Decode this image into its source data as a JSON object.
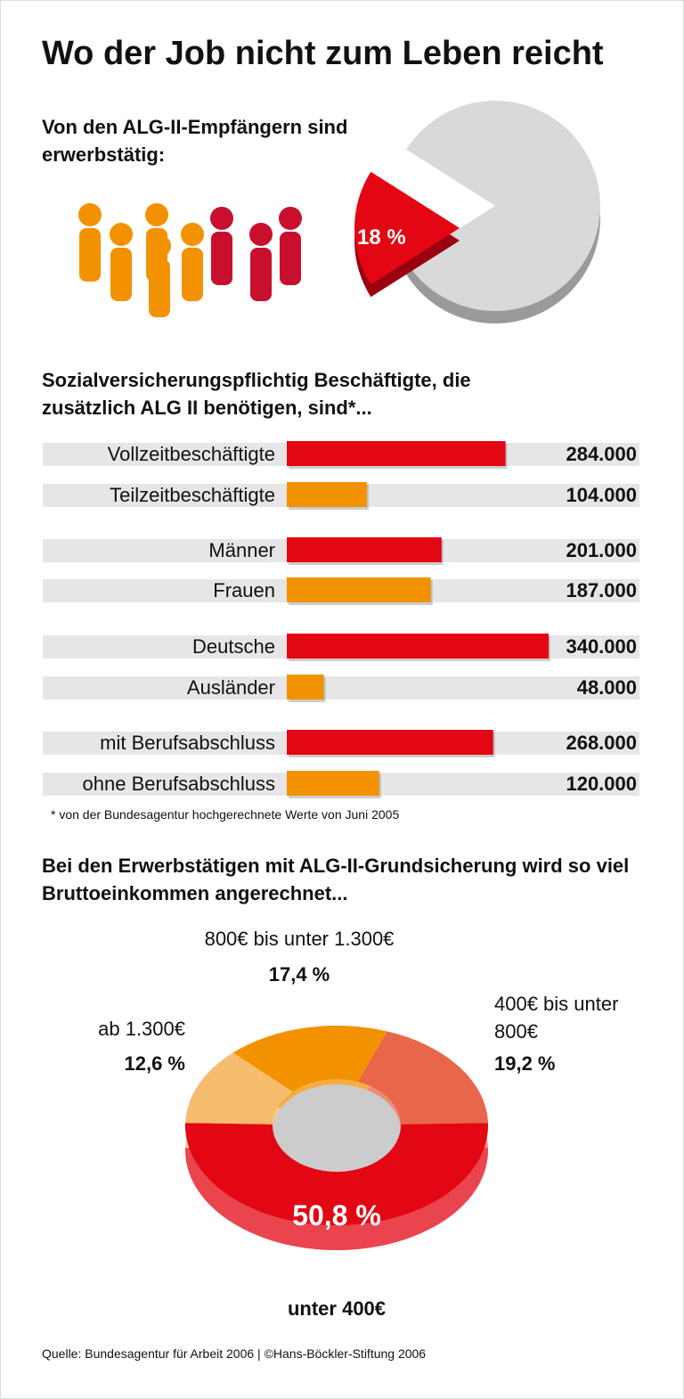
{
  "title": "Wo der Job nicht zum Leben reicht",
  "source": "Quelle: Bundesagentur für Arbeit 2006 | ©Hans-Böckler-Stiftung 2006",
  "chart_data": [
    {
      "type": "pie",
      "title": "Von den ALG-II-Empfängern sind erwerbstätig:",
      "values": [
        18
      ],
      "value_labels": [
        "18 %"
      ],
      "color": "#e30613",
      "rest_color": "#d9d9d9"
    },
    {
      "type": "bar",
      "title": "Sozialversicherungspflichtig Beschäftigte, die zusätzlich ALG II benötigen, sind*...",
      "categories": [
        "Vollzeitbeschäftigte",
        "Teilzeitbeschäftigte",
        "Männer",
        "Frauen",
        "Deutsche",
        "Ausländer",
        "mit Berufsabschluss",
        "ohne Berufsabschluss"
      ],
      "values": [
        284000,
        104000,
        201000,
        187000,
        340000,
        48000,
        268000,
        120000
      ],
      "value_labels": [
        "284.000",
        "104.000",
        "201.000",
        "187.000",
        "340.000",
        "48.000",
        "268.000",
        "120.000"
      ],
      "colors": [
        "#e30613",
        "#f39200",
        "#e30613",
        "#f39200",
        "#e30613",
        "#f39200",
        "#e30613",
        "#f39200"
      ],
      "note": "* von der Bundesagentur hochgerechnete Werte von Juni 2005"
    },
    {
      "type": "donut",
      "title": "Bei den Erwerbstätigen mit ALG-II-Grundsicherung wird so viel Bruttoeinkommen angerechnet...",
      "categories": [
        "unter 400€",
        "400€ bis unter 800€",
        "800€ bis unter 1.300€",
        "ab 1.300€"
      ],
      "values": [
        50.8,
        19.2,
        17.4,
        12.6
      ],
      "value_labels": [
        "50,8 %",
        "19,2 %",
        "17,4 %",
        "12,6 %"
      ],
      "colors": [
        "#e30613",
        "#e8664a",
        "#f39200",
        "#f7bd6e"
      ]
    }
  ]
}
